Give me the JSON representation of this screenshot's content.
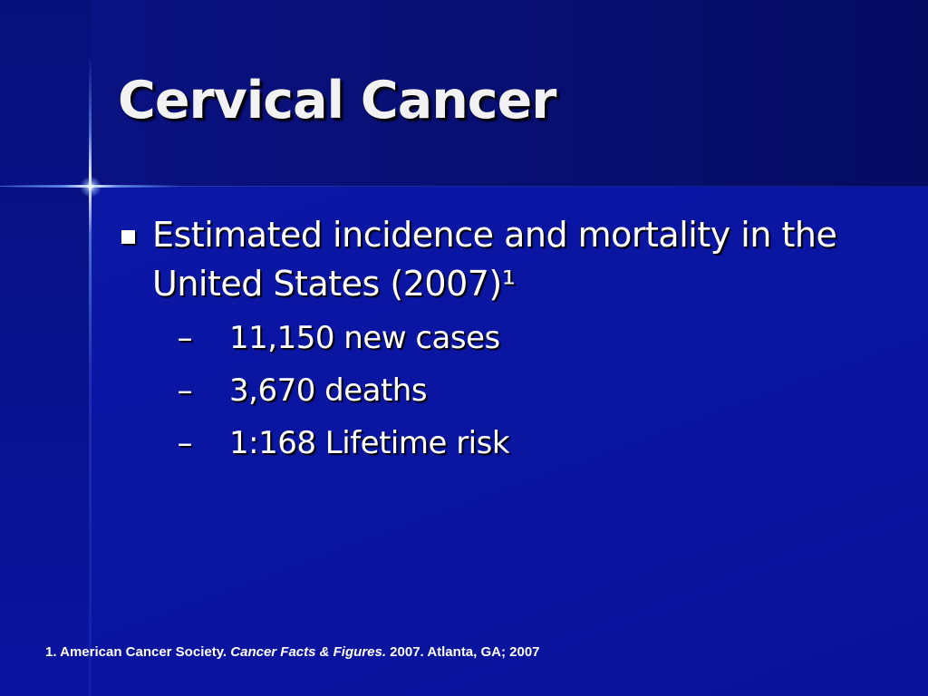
{
  "slide": {
    "title": "Cervical Cancer",
    "bullets": [
      {
        "text": "Estimated incidence and mortality in the United States (2007)¹",
        "sub": [
          {
            "marker": "–",
            "text": "11,150 new cases"
          },
          {
            "marker": "–",
            "text": "3,670 deaths"
          },
          {
            "marker": "–",
            "text": "1:168 Lifetime risk"
          }
        ]
      }
    ],
    "footnote": {
      "prefix": "1. American Cancer Society. ",
      "italic": "Cancer Facts & Figures.",
      "suffix": " 2007. Atlanta, GA; 2007"
    }
  },
  "theme": {
    "background": "#0a1196",
    "text": "#ffffff"
  }
}
